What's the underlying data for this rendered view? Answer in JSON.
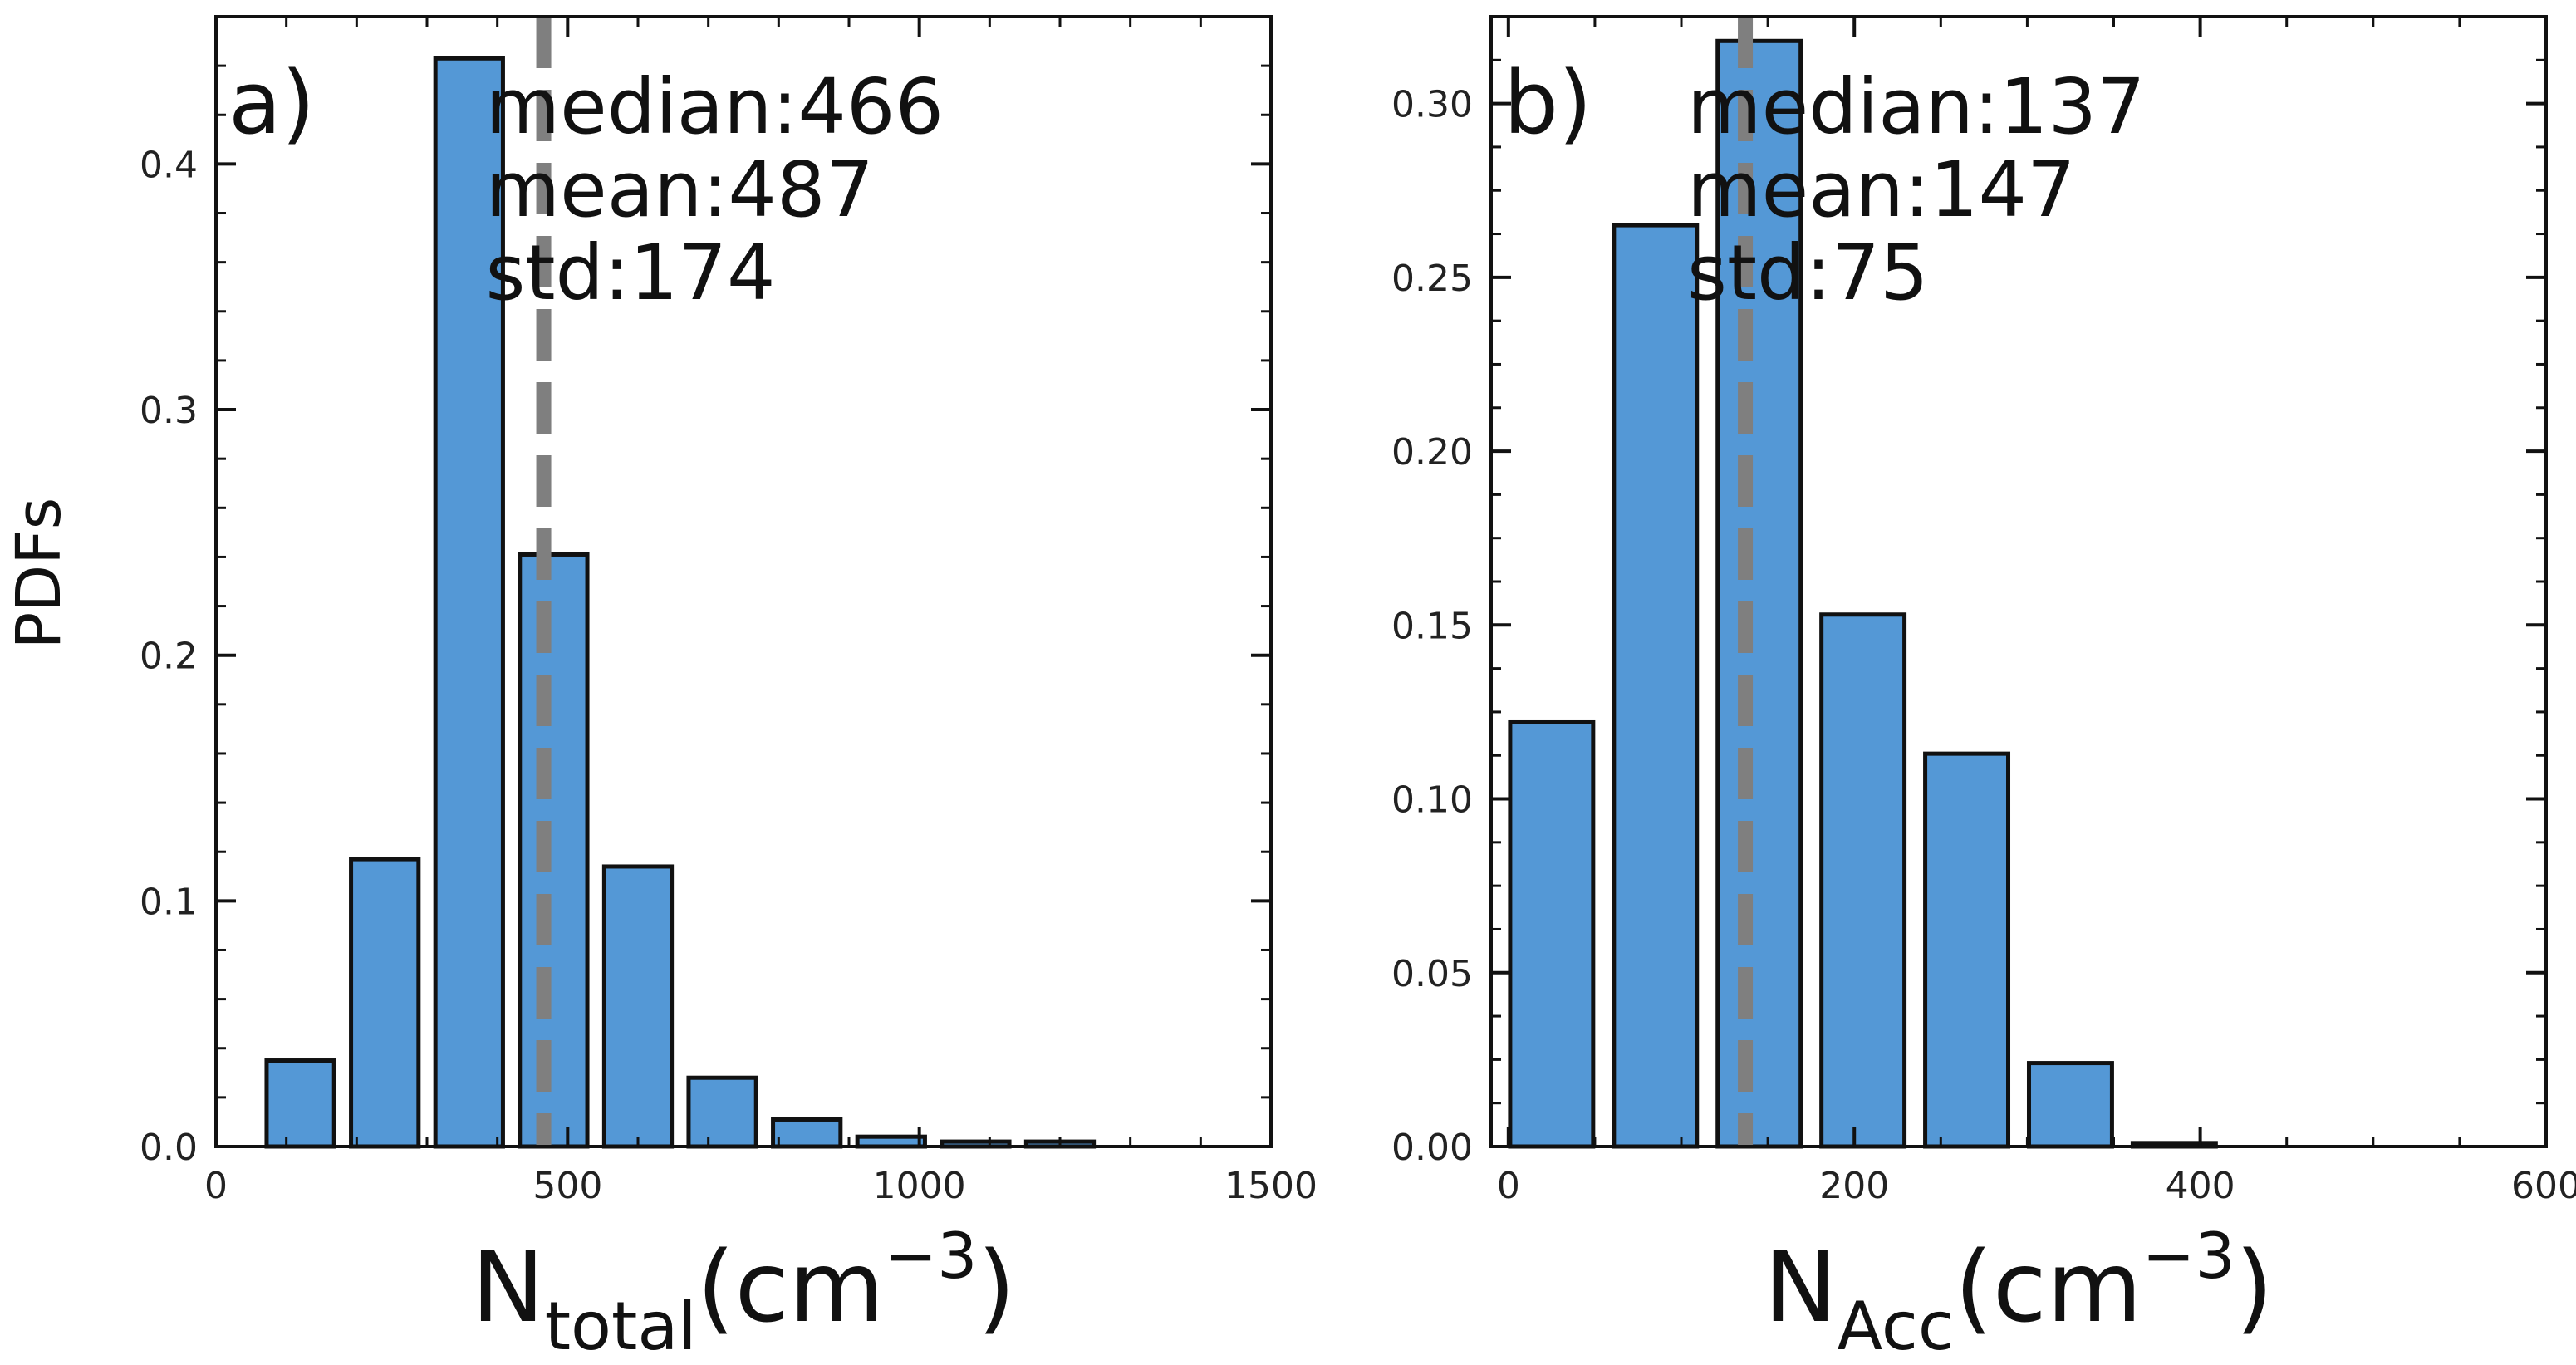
{
  "figure": {
    "ylabel": "PDFs",
    "bar_color": "#5498d6",
    "edge_color": "#111111",
    "median_line_color": "#7f7f7f"
  },
  "chart_data": [
    {
      "type": "bar",
      "panel": "a)",
      "x_centers": [
        120,
        240,
        360,
        480,
        600,
        720,
        840,
        960,
        1080,
        1200,
        1320
      ],
      "bin_width": 96,
      "values": [
        0.035,
        0.117,
        0.443,
        0.241,
        0.114,
        0.028,
        0.011,
        0.004,
        0.002,
        0.002,
        0.0
      ],
      "xlim": [
        0,
        1500
      ],
      "ylim": [
        0,
        0.46
      ],
      "xticks": [
        0,
        500,
        1000,
        1500
      ],
      "xtick_labels": [
        "0",
        "500",
        "1000",
        "1500"
      ],
      "yticks": [
        0.0,
        0.1,
        0.2,
        0.3,
        0.4
      ],
      "ytick_labels": [
        "0.0",
        "0.1",
        "0.2",
        "0.3",
        "0.4"
      ],
      "x_minor_step": 100,
      "y_minor_step": 0.02,
      "median": 466,
      "stats": {
        "median": "median:466",
        "mean": "mean:487",
        "std": "std:174"
      },
      "xlabel": {
        "base": "N",
        "sub": "total",
        "unit": "(cm",
        "sup": "−3",
        "close": ")"
      }
    },
    {
      "type": "bar",
      "panel": "b)",
      "x_centers": [
        25,
        85,
        145,
        205,
        265,
        325,
        385
      ],
      "bin_width": 48,
      "values": [
        0.122,
        0.265,
        0.318,
        0.153,
        0.113,
        0.024,
        0.001
      ],
      "xlim": [
        -10,
        600
      ],
      "ylim": [
        0,
        0.325
      ],
      "xticks": [
        0,
        200,
        400,
        600
      ],
      "xtick_labels": [
        "0",
        "200",
        "400",
        "600"
      ],
      "yticks": [
        0.0,
        0.05,
        0.1,
        0.15,
        0.2,
        0.25,
        0.3
      ],
      "ytick_labels": [
        "0.00",
        "0.05",
        "0.10",
        "0.15",
        "0.20",
        "0.25",
        "0.30"
      ],
      "x_minor_step": 50,
      "y_minor_step": 0.0125,
      "median": 137,
      "stats": {
        "median": "median:137",
        "mean": "mean:147",
        "std": "std:75"
      },
      "xlabel": {
        "base": "N",
        "sub": "Acc",
        "unit": "(cm",
        "sup": "−3",
        "close": ")"
      }
    }
  ]
}
